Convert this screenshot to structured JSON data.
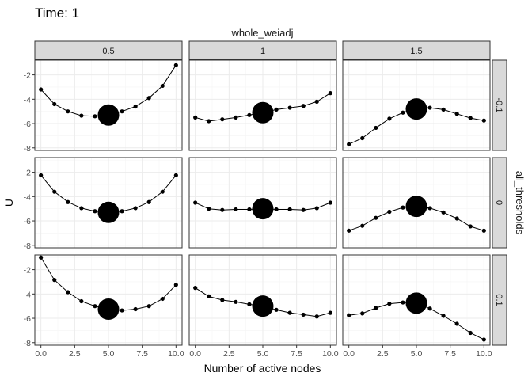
{
  "title": "Time: 1",
  "chart_data": {
    "type": "line",
    "title": "Time: 1",
    "xlabel": "Number of active nodes",
    "ylabel": "U",
    "col_facet_title": "whole_weiadj",
    "row_facet_title": "all_thresholds",
    "col_facets": [
      "0.5",
      "1",
      "1.5"
    ],
    "row_facets": [
      "-0.1",
      "0",
      "0.1"
    ],
    "x": [
      0,
      1,
      2,
      3,
      4,
      5,
      6,
      7,
      8,
      9,
      10
    ],
    "xlim": [
      0,
      10
    ],
    "ylim": [
      -8,
      -1
    ],
    "x_ticks": [
      0,
      2.5,
      5,
      7.5,
      10
    ],
    "x_tick_labels": [
      "0.0",
      "2.5",
      "5.0",
      "7.5",
      "10.0"
    ],
    "y_ticks": [
      -8,
      -6,
      -4,
      -2
    ],
    "y_tick_labels": [
      "-8",
      "-6",
      "-4",
      "-2"
    ],
    "highlight_x": 5,
    "grid": true,
    "panels": [
      {
        "row": "-0.1",
        "col": "0.5",
        "y": [
          -3.2,
          -4.4,
          -5.0,
          -5.35,
          -5.4,
          -5.3,
          -5.0,
          -4.6,
          -3.9,
          -2.9,
          -1.2
        ]
      },
      {
        "row": "-0.1",
        "col": "1",
        "y": [
          -5.5,
          -5.8,
          -5.65,
          -5.5,
          -5.3,
          -5.1,
          -4.85,
          -4.7,
          -4.55,
          -4.2,
          -3.5
        ]
      },
      {
        "row": "-0.1",
        "col": "1.5",
        "y": [
          -7.7,
          -7.2,
          -6.35,
          -5.6,
          -5.1,
          -4.8,
          -4.7,
          -4.85,
          -5.2,
          -5.55,
          -5.75
        ]
      },
      {
        "row": "0",
        "col": "0.5",
        "y": [
          -2.25,
          -3.6,
          -4.45,
          -4.95,
          -5.2,
          -5.3,
          -5.2,
          -4.95,
          -4.45,
          -3.6,
          -2.25
        ]
      },
      {
        "row": "0",
        "col": "1",
        "y": [
          -4.5,
          -5.0,
          -5.1,
          -5.05,
          -5.05,
          -5.0,
          -5.05,
          -5.05,
          -5.1,
          -4.95,
          -4.5
        ]
      },
      {
        "row": "0",
        "col": "1.5",
        "y": [
          -6.8,
          -6.4,
          -5.75,
          -5.25,
          -4.9,
          -4.8,
          -4.95,
          -5.3,
          -5.8,
          -6.45,
          -6.8
        ]
      },
      {
        "row": "0.1",
        "col": "0.5",
        "y": [
          -1.0,
          -2.85,
          -3.85,
          -4.6,
          -5.0,
          -5.25,
          -5.35,
          -5.25,
          -5.0,
          -4.4,
          -3.25
        ]
      },
      {
        "row": "0.1",
        "col": "1",
        "y": [
          -3.5,
          -4.2,
          -4.5,
          -4.65,
          -4.85,
          -5.0,
          -5.3,
          -5.55,
          -5.7,
          -5.85,
          -5.55
        ]
      },
      {
        "row": "0.1",
        "col": "1.5",
        "y": [
          -5.75,
          -5.6,
          -5.15,
          -4.8,
          -4.7,
          -4.75,
          -5.2,
          -5.8,
          -6.45,
          -7.2,
          -7.75
        ]
      }
    ]
  }
}
